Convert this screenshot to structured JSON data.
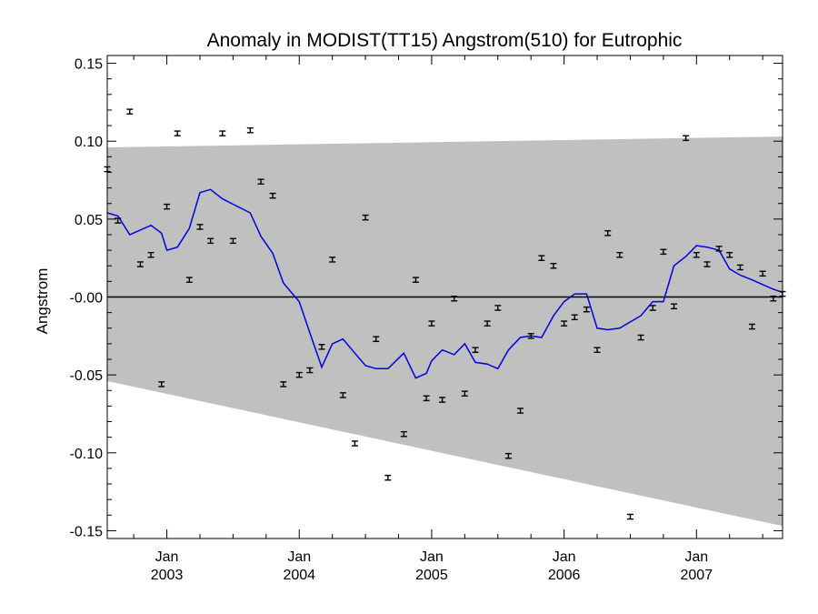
{
  "chart_data": {
    "type": "scatter",
    "title": "Anomaly in MODIST(TT15) Angstrom(510) for Eutrophic",
    "xlabel": "",
    "ylabel": "Angstrom",
    "xlim": [
      2002.55,
      2007.65
    ],
    "ylim": [
      -0.155,
      0.155
    ],
    "grid": false,
    "yticks": [
      {
        "value": 0.15,
        "label": "0.15"
      },
      {
        "value": 0.1,
        "label": "0.10"
      },
      {
        "value": 0.05,
        "label": "0.05"
      },
      {
        "value": 0.0,
        "label": "-0.00"
      },
      {
        "value": -0.05,
        "label": "-0.05"
      },
      {
        "value": -0.1,
        "label": "-0.10"
      },
      {
        "value": -0.15,
        "label": "-0.15"
      }
    ],
    "xticks": [
      {
        "value": 2003.0,
        "month": "Jan",
        "year": "2003"
      },
      {
        "value": 2004.0,
        "month": "Jan",
        "year": "2004"
      },
      {
        "value": 2005.0,
        "month": "Jan",
        "year": "2005"
      },
      {
        "value": 2006.0,
        "month": "Jan",
        "year": "2006"
      },
      {
        "value": 2007.0,
        "month": "Jan",
        "year": "2007"
      }
    ],
    "colors": {
      "band": "#c0c0c0",
      "smooth_line": "#0000dd",
      "points": "#000000",
      "zero_line": "#000000"
    },
    "band": {
      "upper": [
        [
          2002.55,
          0.096
        ],
        [
          2007.65,
          0.103
        ]
      ],
      "lower": [
        [
          2002.55,
          -0.054
        ],
        [
          2007.65,
          -0.147
        ]
      ]
    },
    "zero_line": 0.0,
    "points": [
      {
        "x": 2002.55,
        "y": 0.082
      },
      {
        "x": 2002.63,
        "y": 0.049
      },
      {
        "x": 2002.72,
        "y": 0.119
      },
      {
        "x": 2002.8,
        "y": 0.021
      },
      {
        "x": 2002.88,
        "y": 0.027
      },
      {
        "x": 2002.96,
        "y": -0.056
      },
      {
        "x": 2003.0,
        "y": 0.058
      },
      {
        "x": 2003.08,
        "y": 0.105
      },
      {
        "x": 2003.17,
        "y": 0.011
      },
      {
        "x": 2003.25,
        "y": 0.045
      },
      {
        "x": 2003.33,
        "y": 0.036
      },
      {
        "x": 2003.42,
        "y": 0.105
      },
      {
        "x": 2003.5,
        "y": 0.036
      },
      {
        "x": 2003.63,
        "y": 0.107
      },
      {
        "x": 2003.71,
        "y": 0.074
      },
      {
        "x": 2003.8,
        "y": 0.065
      },
      {
        "x": 2003.88,
        "y": -0.056
      },
      {
        "x": 2004.0,
        "y": -0.05
      },
      {
        "x": 2004.08,
        "y": -0.047
      },
      {
        "x": 2004.17,
        "y": -0.032
      },
      {
        "x": 2004.25,
        "y": 0.024
      },
      {
        "x": 2004.33,
        "y": -0.063
      },
      {
        "x": 2004.42,
        "y": -0.094
      },
      {
        "x": 2004.5,
        "y": 0.051
      },
      {
        "x": 2004.58,
        "y": -0.027
      },
      {
        "x": 2004.67,
        "y": -0.116
      },
      {
        "x": 2004.79,
        "y": -0.088
      },
      {
        "x": 2004.88,
        "y": 0.011
      },
      {
        "x": 2004.96,
        "y": -0.065
      },
      {
        "x": 2005.0,
        "y": -0.017
      },
      {
        "x": 2005.08,
        "y": -0.066
      },
      {
        "x": 2005.17,
        "y": -0.001
      },
      {
        "x": 2005.25,
        "y": -0.062
      },
      {
        "x": 2005.33,
        "y": -0.034
      },
      {
        "x": 2005.42,
        "y": -0.017
      },
      {
        "x": 2005.5,
        "y": -0.007
      },
      {
        "x": 2005.58,
        "y": -0.102
      },
      {
        "x": 2005.67,
        "y": -0.073
      },
      {
        "x": 2005.75,
        "y": -0.025
      },
      {
        "x": 2005.83,
        "y": 0.025
      },
      {
        "x": 2005.92,
        "y": 0.02
      },
      {
        "x": 2006.0,
        "y": -0.017
      },
      {
        "x": 2006.08,
        "y": -0.013
      },
      {
        "x": 2006.17,
        "y": -0.008
      },
      {
        "x": 2006.25,
        "y": -0.034
      },
      {
        "x": 2006.33,
        "y": 0.041
      },
      {
        "x": 2006.42,
        "y": 0.027
      },
      {
        "x": 2006.5,
        "y": -0.141
      },
      {
        "x": 2006.58,
        "y": -0.026
      },
      {
        "x": 2006.67,
        "y": -0.007
      },
      {
        "x": 2006.75,
        "y": 0.029
      },
      {
        "x": 2006.83,
        "y": -0.006
      },
      {
        "x": 2006.92,
        "y": 0.102
      },
      {
        "x": 2007.0,
        "y": 0.027
      },
      {
        "x": 2007.08,
        "y": 0.021
      },
      {
        "x": 2007.17,
        "y": 0.031
      },
      {
        "x": 2007.25,
        "y": 0.027
      },
      {
        "x": 2007.33,
        "y": 0.019
      },
      {
        "x": 2007.42,
        "y": -0.019
      },
      {
        "x": 2007.5,
        "y": 0.015
      },
      {
        "x": 2007.58,
        "y": -0.001
      },
      {
        "x": 2007.65,
        "y": 0.002
      }
    ],
    "smooth": [
      {
        "x": 2002.55,
        "y": 0.054
      },
      {
        "x": 2002.63,
        "y": 0.052
      },
      {
        "x": 2002.72,
        "y": 0.04
      },
      {
        "x": 2002.88,
        "y": 0.046
      },
      {
        "x": 2002.96,
        "y": 0.041
      },
      {
        "x": 2003.0,
        "y": 0.03
      },
      {
        "x": 2003.08,
        "y": 0.032
      },
      {
        "x": 2003.17,
        "y": 0.044
      },
      {
        "x": 2003.25,
        "y": 0.067
      },
      {
        "x": 2003.33,
        "y": 0.069
      },
      {
        "x": 2003.42,
        "y": 0.063
      },
      {
        "x": 2003.63,
        "y": 0.054
      },
      {
        "x": 2003.71,
        "y": 0.039
      },
      {
        "x": 2003.8,
        "y": 0.028
      },
      {
        "x": 2003.88,
        "y": 0.009
      },
      {
        "x": 2004.0,
        "y": -0.003
      },
      {
        "x": 2004.08,
        "y": -0.023
      },
      {
        "x": 2004.17,
        "y": -0.045
      },
      {
        "x": 2004.25,
        "y": -0.03
      },
      {
        "x": 2004.33,
        "y": -0.027
      },
      {
        "x": 2004.42,
        "y": -0.036
      },
      {
        "x": 2004.5,
        "y": -0.044
      },
      {
        "x": 2004.58,
        "y": -0.046
      },
      {
        "x": 2004.67,
        "y": -0.046
      },
      {
        "x": 2004.79,
        "y": -0.036
      },
      {
        "x": 2004.88,
        "y": -0.052
      },
      {
        "x": 2004.96,
        "y": -0.049
      },
      {
        "x": 2005.0,
        "y": -0.041
      },
      {
        "x": 2005.08,
        "y": -0.034
      },
      {
        "x": 2005.17,
        "y": -0.037
      },
      {
        "x": 2005.25,
        "y": -0.03
      },
      {
        "x": 2005.33,
        "y": -0.042
      },
      {
        "x": 2005.42,
        "y": -0.043
      },
      {
        "x": 2005.5,
        "y": -0.046
      },
      {
        "x": 2005.58,
        "y": -0.034
      },
      {
        "x": 2005.67,
        "y": -0.026
      },
      {
        "x": 2005.75,
        "y": -0.025
      },
      {
        "x": 2005.83,
        "y": -0.026
      },
      {
        "x": 2005.92,
        "y": -0.012
      },
      {
        "x": 2006.0,
        "y": -0.003
      },
      {
        "x": 2006.08,
        "y": 0.002
      },
      {
        "x": 2006.17,
        "y": 0.002
      },
      {
        "x": 2006.25,
        "y": -0.02
      },
      {
        "x": 2006.33,
        "y": -0.021
      },
      {
        "x": 2006.42,
        "y": -0.02
      },
      {
        "x": 2006.5,
        "y": -0.016
      },
      {
        "x": 2006.58,
        "y": -0.012
      },
      {
        "x": 2006.67,
        "y": -0.003
      },
      {
        "x": 2006.75,
        "y": -0.003
      },
      {
        "x": 2006.83,
        "y": 0.02
      },
      {
        "x": 2006.92,
        "y": 0.026
      },
      {
        "x": 2007.0,
        "y": 0.033
      },
      {
        "x": 2007.08,
        "y": 0.032
      },
      {
        "x": 2007.17,
        "y": 0.03
      },
      {
        "x": 2007.25,
        "y": 0.018
      },
      {
        "x": 2007.33,
        "y": 0.014
      },
      {
        "x": 2007.42,
        "y": 0.011
      },
      {
        "x": 2007.5,
        "y": 0.008
      },
      {
        "x": 2007.58,
        "y": 0.005
      },
      {
        "x": 2007.65,
        "y": 0.003
      }
    ],
    "error_half_width": 0.0015
  }
}
